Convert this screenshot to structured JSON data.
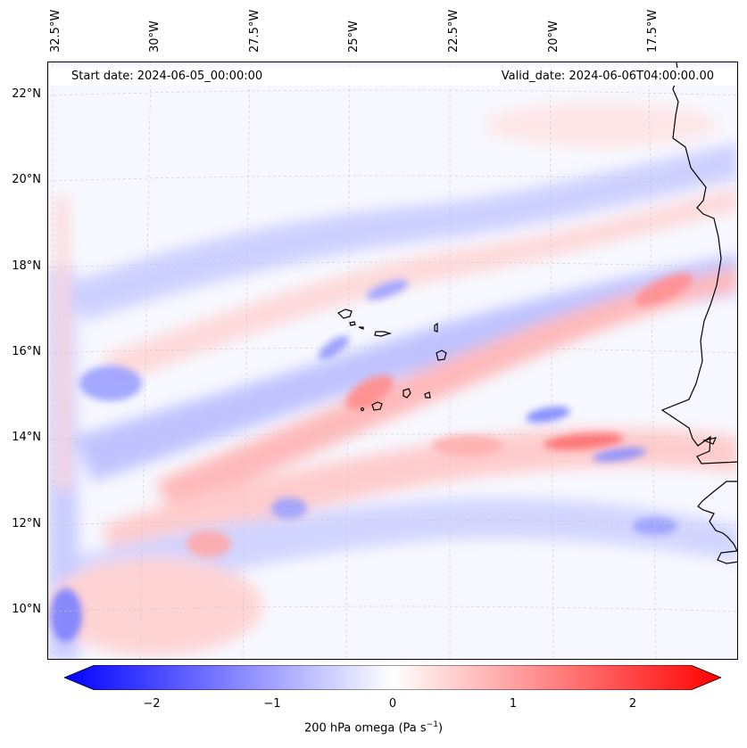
{
  "header": {
    "start_date": "Start date: 2024-06-05_00:00:00",
    "valid_date": "Valid_date: 2024-06-06T04:00:00.00"
  },
  "map": {
    "longitude_labels": [
      "32.5°W",
      "30°W",
      "27.5°W",
      "25°W",
      "22.5°W",
      "20°W",
      "17.5°W"
    ],
    "latitude_labels": [
      "22°N",
      "20°N",
      "18°N",
      "16°N",
      "14°N",
      "12°N",
      "10°N"
    ],
    "field": "200 hPa omega",
    "features": [
      "Cabo Verde islands",
      "West African coastline"
    ]
  },
  "colorbar": {
    "title_prefix": "200 hPa omega (Pa s",
    "title_exp": "−1",
    "title_suffix": ")",
    "tick_labels": [
      "−2",
      "−1",
      "0",
      "1",
      "2"
    ],
    "tick_values": [
      -2,
      -1,
      0,
      1,
      2
    ],
    "range": [
      -2.6,
      2.6
    ],
    "extend": "both",
    "colormap": "bwr",
    "colors": {
      "negative": "#0000ff",
      "zero": "#ffffff",
      "positive": "#ff0000"
    }
  },
  "colors": {
    "coastline": "#000000",
    "gridline": "#c8c8c8"
  }
}
